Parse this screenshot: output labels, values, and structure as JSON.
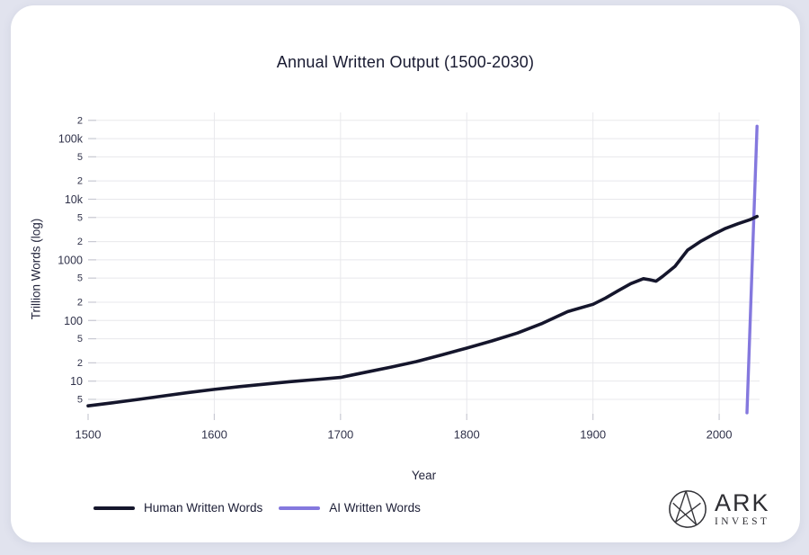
{
  "page": {
    "background_color": "#e1e3ee",
    "card_background_color": "#ffffff"
  },
  "chart": {
    "title": "Annual Written Output (1500-2030)",
    "x_axis_label": "Year",
    "y_axis_label": "Trillion Words (log)",
    "legend": [
      {
        "label": "Human Written Words",
        "color": "#15162c"
      },
      {
        "label": "AI Written Words",
        "color": "#8478de"
      }
    ]
  },
  "chart_data": {
    "type": "line",
    "title": "Annual Written Output (1500-2030)",
    "xlabel": "Year",
    "ylabel": "Trillion Words (log)",
    "y_scale": "log",
    "grid": true,
    "legend_position": "bottom-left",
    "x_domain": [
      1500,
      2032
    ],
    "y_domain": [
      2.7,
      270000
    ],
    "x_ticks": [
      1500,
      1600,
      1700,
      1800,
      1900,
      2000
    ],
    "y_ticks": [
      {
        "value": 5,
        "label": "5",
        "minor": true
      },
      {
        "value": 10,
        "label": "10",
        "minor": false
      },
      {
        "value": 20,
        "label": "2",
        "minor": true
      },
      {
        "value": 50,
        "label": "5",
        "minor": true
      },
      {
        "value": 100,
        "label": "100",
        "minor": false
      },
      {
        "value": 200,
        "label": "2",
        "minor": true
      },
      {
        "value": 500,
        "label": "5",
        "minor": true
      },
      {
        "value": 1000,
        "label": "1000",
        "minor": false
      },
      {
        "value": 2000,
        "label": "2",
        "minor": true
      },
      {
        "value": 5000,
        "label": "5",
        "minor": true
      },
      {
        "value": 10000,
        "label": "10k",
        "minor": false
      },
      {
        "value": 20000,
        "label": "2",
        "minor": true
      },
      {
        "value": 50000,
        "label": "5",
        "minor": true
      },
      {
        "value": 100000,
        "label": "100k",
        "minor": false
      },
      {
        "value": 200000,
        "label": "2",
        "minor": true
      }
    ],
    "series": [
      {
        "name": "Human Written Words",
        "color": "#15162c",
        "stroke_width": 3.6,
        "points": [
          [
            1500,
            3.9
          ],
          [
            1520,
            4.4
          ],
          [
            1540,
            5.0
          ],
          [
            1560,
            5.7
          ],
          [
            1580,
            6.5
          ],
          [
            1600,
            7.3
          ],
          [
            1620,
            8.1
          ],
          [
            1640,
            8.9
          ],
          [
            1660,
            9.8
          ],
          [
            1680,
            10.6
          ],
          [
            1700,
            11.5
          ],
          [
            1720,
            14
          ],
          [
            1740,
            17
          ],
          [
            1760,
            21
          ],
          [
            1780,
            27
          ],
          [
            1800,
            35
          ],
          [
            1820,
            46
          ],
          [
            1840,
            62
          ],
          [
            1860,
            90
          ],
          [
            1880,
            140
          ],
          [
            1900,
            185
          ],
          [
            1910,
            235
          ],
          [
            1920,
            310
          ],
          [
            1930,
            405
          ],
          [
            1940,
            490
          ],
          [
            1945,
            470
          ],
          [
            1950,
            445
          ],
          [
            1955,
            530
          ],
          [
            1965,
            780
          ],
          [
            1975,
            1450
          ],
          [
            1985,
            2000
          ],
          [
            1995,
            2600
          ],
          [
            2005,
            3300
          ],
          [
            2015,
            3950
          ],
          [
            2025,
            4650
          ],
          [
            2030,
            5200
          ]
        ]
      },
      {
        "name": "AI Written Words",
        "color": "#8478de",
        "stroke_width": 3.4,
        "points": [
          [
            2022,
            3
          ],
          [
            2026,
            700
          ],
          [
            2030,
            160000
          ]
        ]
      }
    ],
    "colors": {
      "gridline": "#e8e8ec",
      "tick_mark": "#c9cad3",
      "tick_label": "#30324a"
    }
  },
  "branding": {
    "name": "ARK",
    "sub": "INVEST"
  }
}
